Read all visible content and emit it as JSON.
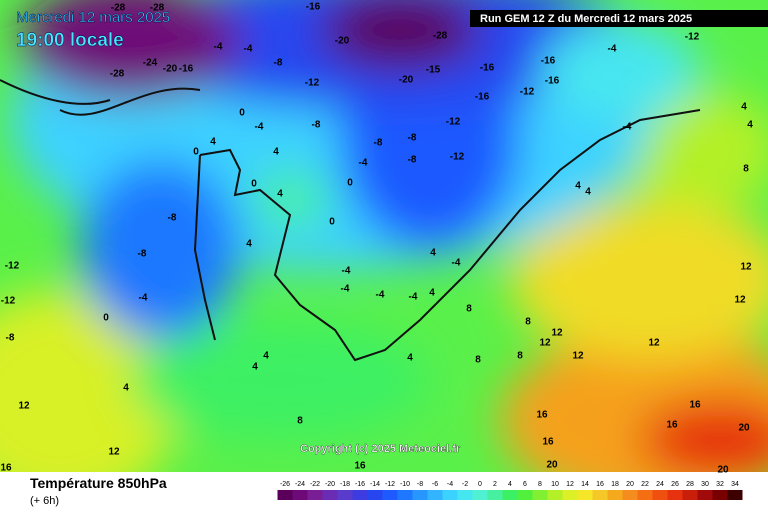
{
  "header": {
    "date": "Mercredi 12 mars 2025",
    "time": "19:00 locale",
    "run": "Run GEM 12 Z du Mercredi 12 mars 2025",
    "copyright": "Copyright (c) 2025 Meteociel.fr"
  },
  "legend": {
    "title": "Température 850hPa",
    "subtitle": "(+ 6h)",
    "ticks": [
      -26,
      -24,
      -22,
      -20,
      -18,
      -16,
      -14,
      -12,
      -10,
      -8,
      -6,
      -4,
      -2,
      0,
      2,
      4,
      6,
      8,
      10,
      12,
      14,
      16,
      18,
      20,
      22,
      24,
      26,
      28,
      30,
      32,
      34
    ],
    "colors": [
      "#5a005a",
      "#6e0a78",
      "#7a1e96",
      "#6a2cb4",
      "#5a3ccc",
      "#3c3ce0",
      "#2846f0",
      "#1e5aff",
      "#1e78ff",
      "#2896ff",
      "#32b4ff",
      "#3cd2ff",
      "#46e6f0",
      "#50f0d2",
      "#46f0a0",
      "#3cf064",
      "#50f03c",
      "#82f032",
      "#b4f028",
      "#dcf028",
      "#f5e628",
      "#f5c828",
      "#f5aa1e",
      "#f58c1e",
      "#f56e14",
      "#f0500f",
      "#e6320f",
      "#c81e0a",
      "#a00a0a",
      "#780000",
      "#3c0000"
    ]
  },
  "map": {
    "contour_labels": [
      "-28",
      "-28",
      "-28",
      "-20",
      "-28",
      "-16",
      "-24",
      "-20",
      "-16",
      "-4",
      "-4",
      "-8",
      "-12",
      "-20",
      "-15",
      "-16",
      "-16",
      "-16",
      "-12",
      "-16",
      "-12",
      "-12",
      "-8",
      "-8",
      "-8",
      "-4",
      "0",
      "-8",
      "-4",
      "0",
      "4",
      "0",
      "4",
      "0",
      "4",
      "0",
      "-8",
      "-8",
      "-4",
      "0",
      "4",
      "-4",
      "-4",
      "-4",
      "-4",
      "4",
      "-4",
      "4",
      "8",
      "8",
      "12",
      "12",
      "12",
      "8",
      "8",
      "4",
      "4",
      "4",
      "4",
      "12",
      "12",
      "16",
      "16",
      "16",
      "20",
      "20",
      "20",
      "16",
      "16",
      "-12",
      "-12",
      "-8",
      "12",
      "12",
      "12",
      "4",
      "4",
      "4",
      "-4",
      "-4",
      "-12",
      "4",
      "8",
      "8",
      "16"
    ]
  }
}
